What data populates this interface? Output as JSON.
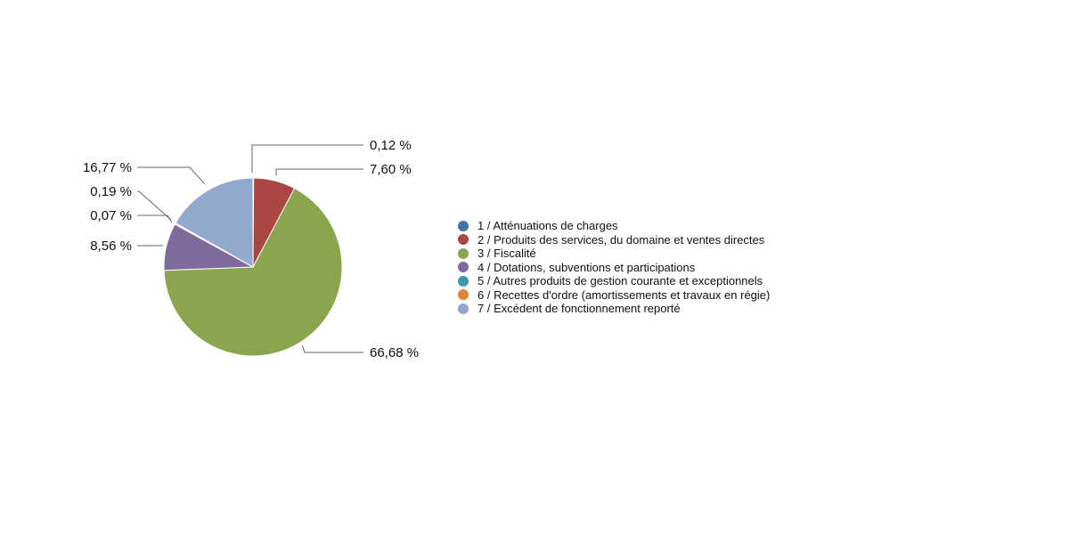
{
  "chart_data": {
    "type": "pie",
    "title": "",
    "slices": [
      {
        "name": "1 / Atténuations de charges",
        "value": 0.12,
        "label": "0,12 %",
        "color": "#4572A7"
      },
      {
        "name": "2 / Produits des services, du domaine et ventes directes",
        "value": 7.6,
        "label": "7,60 %",
        "color": "#AA4643"
      },
      {
        "name": "3 / Fiscalité",
        "value": 66.68,
        "label": "66,68 %",
        "color": "#89A54E"
      },
      {
        "name": "4 / Dotations, subventions et participations",
        "value": 8.56,
        "label": "8,56 %",
        "color": "#80699B"
      },
      {
        "name": "5 / Autres produits de gestion courante et exceptionnels",
        "value": 0.07,
        "label": "0,07 %",
        "color": "#3D96AE"
      },
      {
        "name": "6 / Recettes d'ordre (amortissements et travaux en régie)",
        "value": 0.19,
        "label": "0,19 %",
        "color": "#DB843D"
      },
      {
        "name": "7 / Excédent de fonctionnement reporté",
        "value": 16.77,
        "label": "16,77 %",
        "color": "#92A8CD"
      }
    ],
    "legend_position": "right"
  }
}
